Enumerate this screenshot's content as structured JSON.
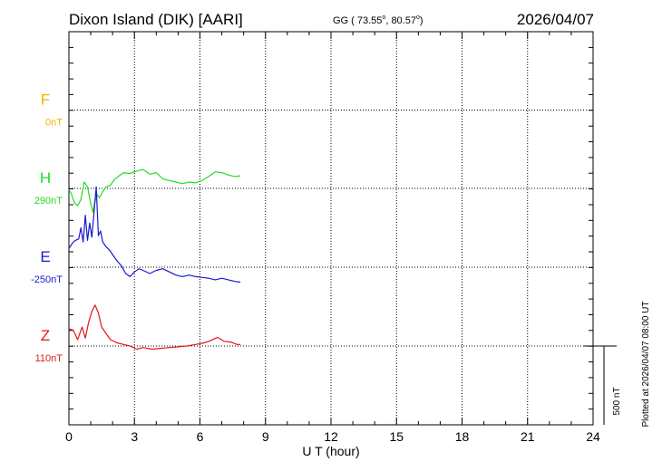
{
  "header": {
    "station": "Dixon Island (DIK)  [AARI]",
    "coords_prefix": "GG ( 73.55",
    "coords_sep": ",  80.57",
    "coords_suffix": ")",
    "degree": "o",
    "date": "2026/04/07"
  },
  "footer": {
    "plotted": "Plotted at 2026/04/07 08:00 UT",
    "scale_label": "500 nT"
  },
  "chart_data": {
    "type": "line",
    "xlabel": "U T (hour)",
    "xlim": [
      0,
      24
    ],
    "xticks": [
      "0",
      "3",
      "6",
      "9",
      "12",
      "15",
      "18",
      "21",
      "24"
    ],
    "scale_nT": 500,
    "components": [
      {
        "id": "F",
        "letter": "F",
        "baseline": "0nT",
        "color": "#f2b200"
      },
      {
        "id": "H",
        "letter": "H",
        "baseline": "290nT",
        "color": "#22dd22"
      },
      {
        "id": "E",
        "letter": "E",
        "baseline": "-250nT",
        "color": "#1a1acc"
      },
      {
        "id": "Z",
        "letter": "Z",
        "baseline": "110nT",
        "color": "#e01818"
      }
    ],
    "series": [
      {
        "name": "H",
        "x": [
          0,
          0.1,
          0.25,
          0.4,
          0.55,
          0.7,
          0.85,
          1.0,
          1.1,
          1.2,
          1.3,
          1.4,
          1.55,
          1.7,
          1.9,
          2.1,
          2.3,
          2.5,
          2.8,
          3.1,
          3.4,
          3.7,
          4.0,
          4.3,
          4.6,
          4.9,
          5.2,
          5.5,
          5.8,
          6.1,
          6.4,
          6.7,
          7.0,
          7.3,
          7.6,
          7.85
        ],
        "values": [
          -10,
          -30,
          -90,
          -110,
          -70,
          40,
          10,
          -100,
          -150,
          -80,
          -40,
          -60,
          -20,
          10,
          20,
          60,
          80,
          100,
          95,
          110,
          120,
          90,
          100,
          60,
          50,
          40,
          30,
          40,
          35,
          50,
          75,
          105,
          100,
          85,
          75,
          80
        ]
      },
      {
        "name": "E",
        "x": [
          0,
          0.1,
          0.2,
          0.3,
          0.45,
          0.55,
          0.65,
          0.75,
          0.85,
          0.95,
          1.05,
          1.15,
          1.25,
          1.35,
          1.45,
          1.55,
          1.7,
          1.85,
          2.0,
          2.2,
          2.4,
          2.6,
          2.8,
          3.0,
          3.2,
          3.4,
          3.7,
          4.0,
          4.3,
          4.6,
          4.9,
          5.2,
          5.5,
          5.8,
          6.1,
          6.4,
          6.7,
          7.0,
          7.3,
          7.6,
          7.85
        ],
        "values": [
          120,
          140,
          160,
          170,
          180,
          250,
          160,
          330,
          170,
          280,
          190,
          350,
          510,
          200,
          230,
          160,
          130,
          110,
          80,
          40,
          10,
          -40,
          -60,
          -30,
          -10,
          -20,
          -40,
          -20,
          -10,
          -30,
          -50,
          -60,
          -50,
          -60,
          -65,
          -70,
          -80,
          -70,
          -80,
          -90,
          -95
        ]
      },
      {
        "name": "Z",
        "x": [
          0,
          0.2,
          0.4,
          0.6,
          0.75,
          0.9,
          1.05,
          1.2,
          1.35,
          1.5,
          1.7,
          1.9,
          2.2,
          2.5,
          2.8,
          3.1,
          3.4,
          3.8,
          4.2,
          4.6,
          5.0,
          5.4,
          5.8,
          6.2,
          6.5,
          6.8,
          7.1,
          7.4,
          7.7,
          7.85
        ],
        "values": [
          110,
          100,
          40,
          120,
          50,
          150,
          220,
          260,
          210,
          120,
          80,
          40,
          20,
          10,
          0,
          -20,
          -10,
          -20,
          -15,
          -10,
          -5,
          0,
          10,
          20,
          35,
          55,
          30,
          25,
          10,
          10
        ]
      }
    ]
  }
}
